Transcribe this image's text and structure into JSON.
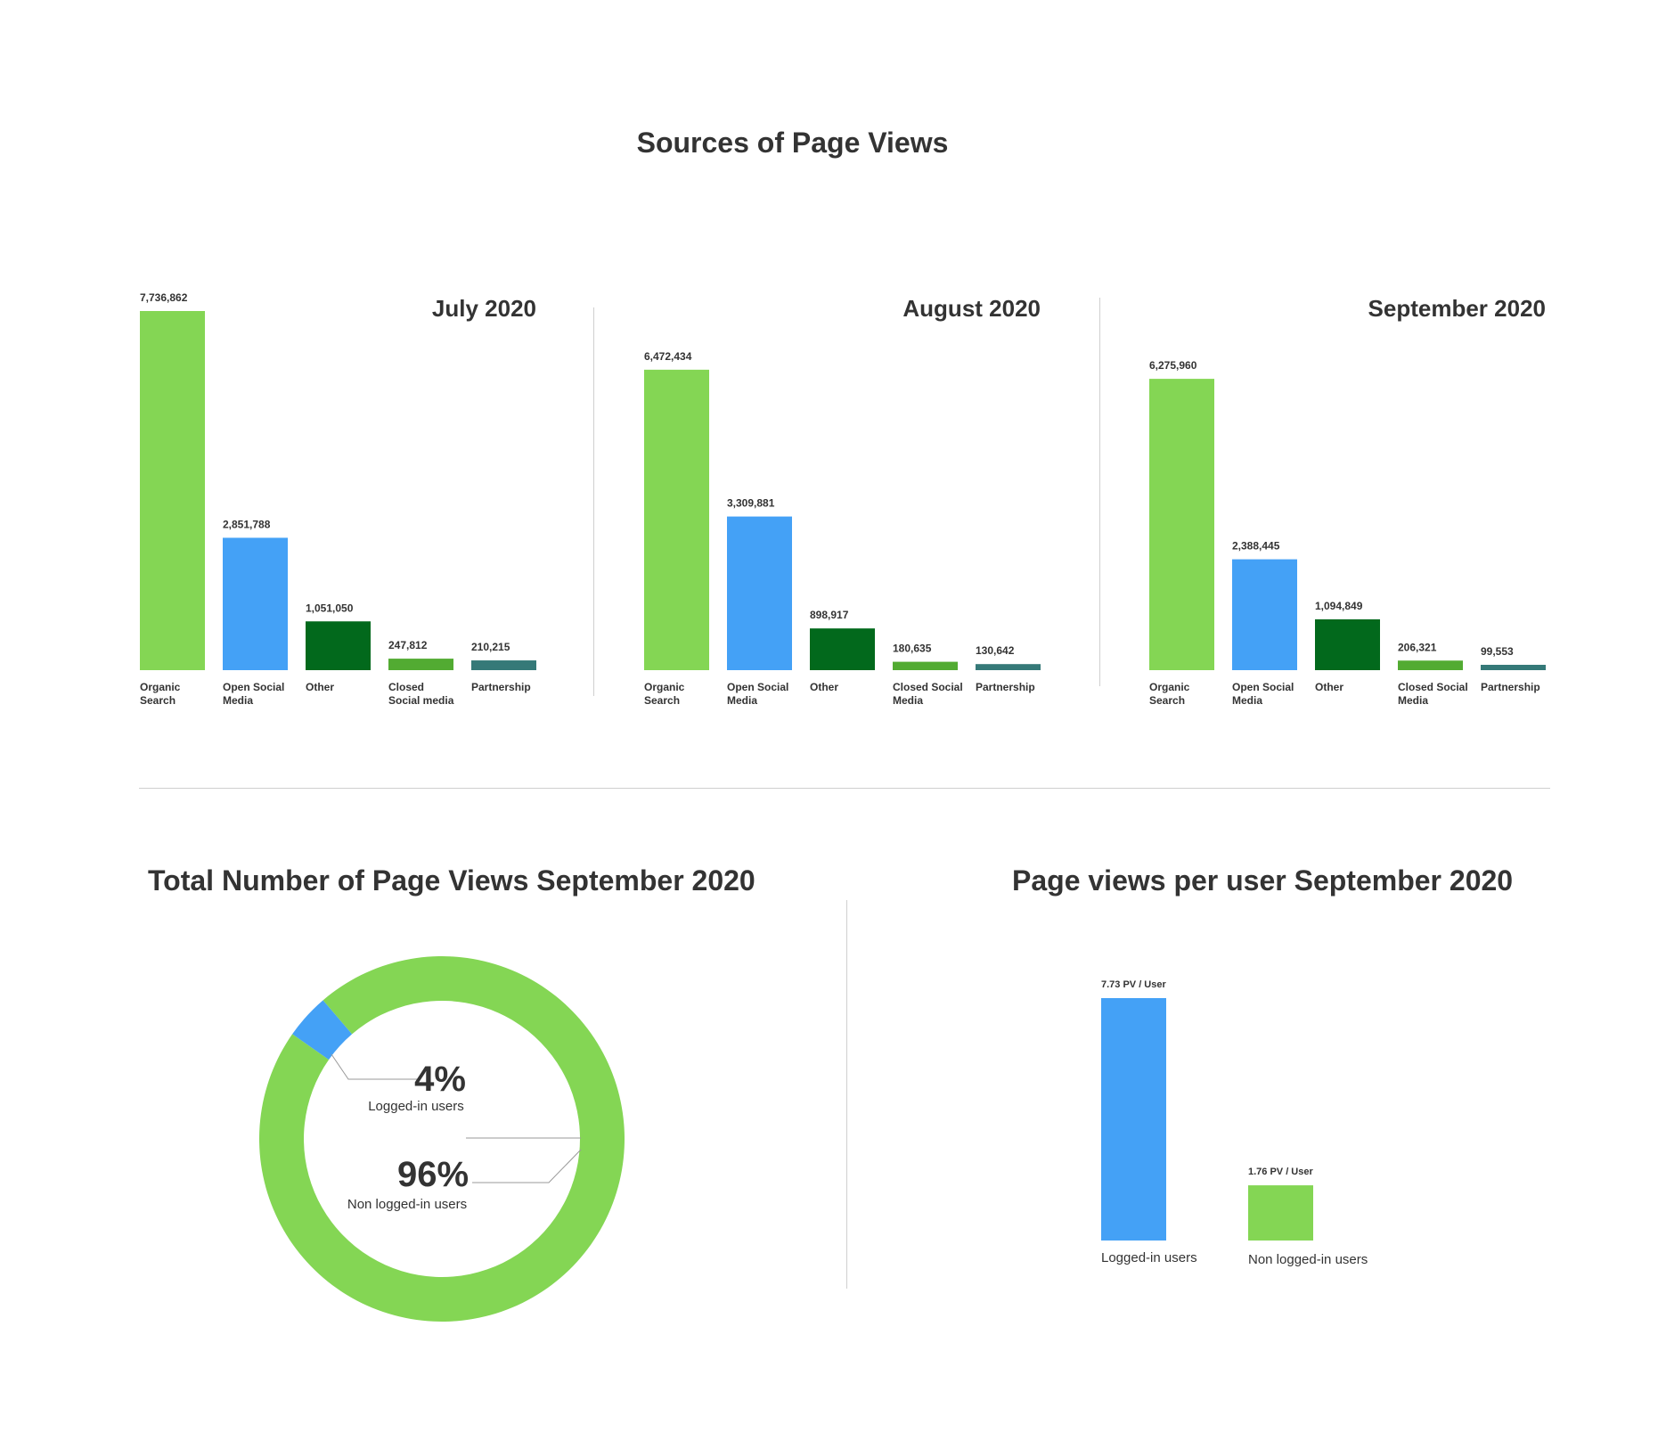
{
  "page_title": "Sources of Page Views",
  "colors": {
    "organic_search": "#84d654",
    "open_social_media": "#44a1f6",
    "other": "#02691c",
    "closed_social_media": "#52ab32",
    "partnership": "#357978",
    "separator": "#cfcfcf",
    "text": "#333333"
  },
  "chart_data": [
    {
      "type": "bar",
      "title": "July 2020",
      "categories": [
        "Organic Search",
        "Open Social Media",
        "Other",
        "Closed Social media",
        "Partnership"
      ],
      "category_lines": [
        [
          "Organic",
          "Search"
        ],
        [
          "Open Social",
          "Media"
        ],
        [
          "Other"
        ],
        [
          "Closed",
          "Social media"
        ],
        [
          "Partnership"
        ]
      ],
      "values": [
        7736862,
        2851788,
        1051050,
        247812,
        210215
      ],
      "value_labels": [
        "7,736,862",
        "2,851,788",
        "1,051,050",
        "247,812",
        "210,215"
      ],
      "colors": [
        "#84d654",
        "#44a1f6",
        "#02691c",
        "#52ab32",
        "#357978"
      ],
      "xlabel": "",
      "ylabel": "",
      "grid": false
    },
    {
      "type": "bar",
      "title": "August 2020",
      "categories": [
        "Organic Search",
        "Open Social Media",
        "Other",
        "Closed Social Media",
        "Partnership"
      ],
      "category_lines": [
        [
          "Organic",
          "Search"
        ],
        [
          "Open Social",
          "Media"
        ],
        [
          "Other"
        ],
        [
          "Closed Social",
          "Media"
        ],
        [
          "Partnership"
        ]
      ],
      "values": [
        6472434,
        3309881,
        898917,
        180635,
        130642
      ],
      "value_labels": [
        "6,472,434",
        "3,309,881",
        "898,917",
        "180,635",
        "130,642"
      ],
      "colors": [
        "#84d654",
        "#44a1f6",
        "#02691c",
        "#52ab32",
        "#357978"
      ],
      "xlabel": "",
      "ylabel": "",
      "grid": false
    },
    {
      "type": "bar",
      "title": "September 2020",
      "categories": [
        "Organic Search",
        "Open Social Media",
        "Other",
        "Closed Social Media",
        "Partnership"
      ],
      "category_lines": [
        [
          "Organic",
          "Search"
        ],
        [
          "Open Social",
          "Media"
        ],
        [
          "Other"
        ],
        [
          "Closed Social",
          "Media"
        ],
        [
          "Partnership"
        ]
      ],
      "values": [
        6275960,
        2388445,
        1094849,
        206321,
        99553
      ],
      "value_labels": [
        "6,275,960",
        "2,388,445",
        "1,094,849",
        "206,321",
        "99,553"
      ],
      "colors": [
        "#84d654",
        "#44a1f6",
        "#02691c",
        "#52ab32",
        "#357978"
      ],
      "xlabel": "",
      "ylabel": "",
      "grid": false
    },
    {
      "type": "pie",
      "title": "Total Number of Page Views September 2020",
      "donut": true,
      "slices": [
        {
          "label": "Logged-in users",
          "value": 4,
          "value_label": "4%",
          "color": "#44a1f6"
        },
        {
          "label": "Non logged-in users",
          "value": 96,
          "value_label": "96%",
          "color": "#84d654"
        }
      ]
    },
    {
      "type": "bar",
      "title": "Page views per user September 2020",
      "categories": [
        "Logged-in users",
        "Non logged-in users"
      ],
      "values": [
        7.73,
        1.76
      ],
      "value_labels": [
        "7.73 PV / User",
        "1.76 PV / User"
      ],
      "colors": [
        "#44a1f6",
        "#84d654"
      ],
      "xlabel": "",
      "ylabel": "",
      "grid": false
    }
  ]
}
